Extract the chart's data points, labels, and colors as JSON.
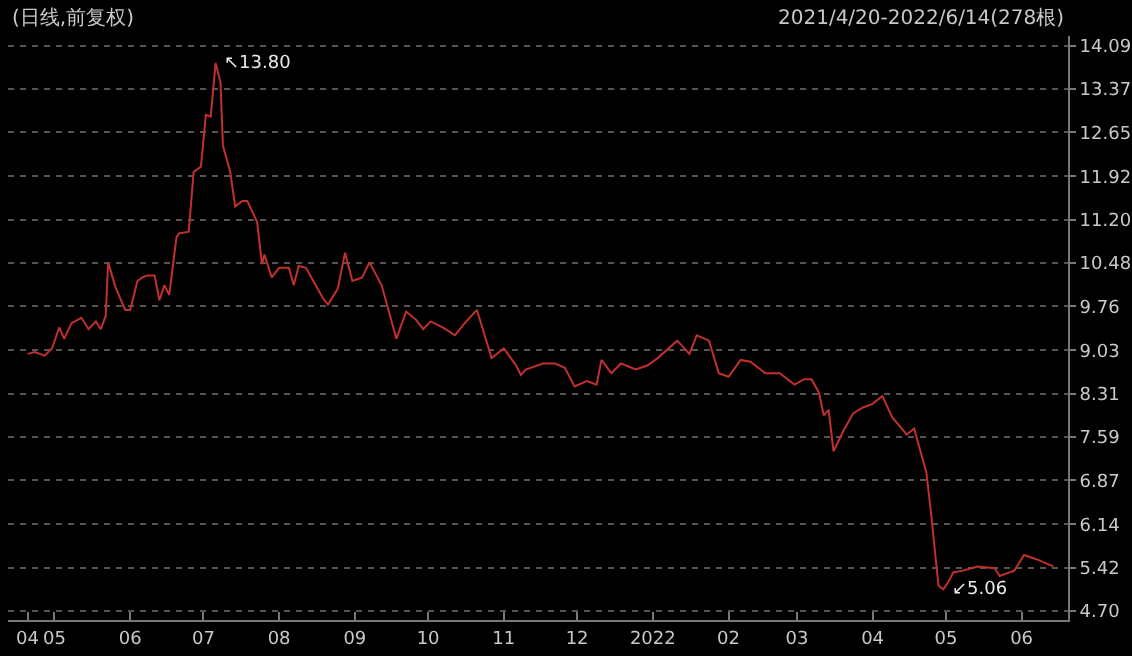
{
  "chart_data": {
    "type": "line",
    "title": "(日线,前复权)",
    "subtitle": "2021/4/20-2022/6/14(278根)",
    "x": [
      "2021-04-20",
      "2021-04-23",
      "2021-04-27",
      "2021-04-30",
      "2021-05-03",
      "2021-05-05",
      "2021-05-08",
      "2021-05-12",
      "2021-05-15",
      "2021-05-18",
      "2021-05-20",
      "2021-05-22",
      "2021-05-23",
      "2021-05-26",
      "2021-05-30",
      "2021-06-01",
      "2021-06-04",
      "2021-06-06",
      "2021-06-08",
      "2021-06-11",
      "2021-06-13",
      "2021-06-15",
      "2021-06-17",
      "2021-06-20",
      "2021-06-21",
      "2021-06-25",
      "2021-06-27",
      "2021-06-30",
      "2021-07-02",
      "2021-07-04",
      "2021-07-06",
      "2021-07-08",
      "2021-07-09",
      "2021-07-12",
      "2021-07-14",
      "2021-07-17",
      "2021-07-19",
      "2021-07-23",
      "2021-07-25",
      "2021-07-26",
      "2021-07-29",
      "2021-08-01",
      "2021-08-05",
      "2021-08-07",
      "2021-08-09",
      "2021-08-12",
      "2021-08-16",
      "2021-08-19",
      "2021-08-21",
      "2021-08-25",
      "2021-08-28",
      "2021-08-31",
      "2021-09-04",
      "2021-09-07",
      "2021-09-12",
      "2021-09-18",
      "2021-09-22",
      "2021-09-26",
      "2021-09-29",
      "2021-10-02",
      "2021-10-07",
      "2021-10-12",
      "2021-10-16",
      "2021-10-21",
      "2021-10-27",
      "2021-11-01",
      "2021-11-06",
      "2021-11-08",
      "2021-11-10",
      "2021-11-17",
      "2021-11-22",
      "2021-11-26",
      "2021-11-30",
      "2021-12-05",
      "2021-12-09",
      "2021-12-11",
      "2021-12-15",
      "2021-12-19",
      "2021-12-25",
      "2021-12-30",
      "2022-01-03",
      "2022-01-11",
      "2022-01-16",
      "2022-01-19",
      "2022-01-24",
      "2022-01-28",
      "2022-02-01",
      "2022-02-06",
      "2022-02-10",
      "2022-02-16",
      "2022-02-22",
      "2022-02-28",
      "2022-03-04",
      "2022-03-07",
      "2022-03-10",
      "2022-03-12",
      "2022-03-14",
      "2022-03-16",
      "2022-03-20",
      "2022-03-24",
      "2022-03-28",
      "2022-04-01",
      "2022-04-05",
      "2022-04-09",
      "2022-04-15",
      "2022-04-18",
      "2022-04-23",
      "2022-04-25",
      "2022-04-27",
      "2022-04-28",
      "2022-04-30",
      "2022-05-02",
      "2022-05-04",
      "2022-05-08",
      "2022-05-14",
      "2022-05-21",
      "2022-05-23",
      "2022-05-29",
      "2022-06-02",
      "2022-06-07",
      "2022-06-14"
    ],
    "series": [
      {
        "color": "#c0302f",
        "values": [
          8.97,
          9.0,
          8.94,
          9.06,
          9.41,
          9.22,
          9.48,
          9.57,
          9.38,
          9.51,
          9.38,
          9.6,
          10.49,
          10.08,
          9.7,
          9.7,
          10.18,
          10.24,
          10.27,
          10.27,
          9.86,
          10.11,
          9.95,
          10.91,
          10.97,
          11.0,
          11.99,
          12.08,
          12.94,
          12.91,
          13.8,
          13.48,
          12.43,
          11.99,
          11.42,
          11.51,
          11.51,
          11.16,
          10.46,
          10.62,
          10.24,
          10.4,
          10.4,
          10.11,
          10.43,
          10.4,
          10.11,
          9.89,
          9.79,
          10.05,
          10.65,
          10.18,
          10.24,
          10.49,
          10.11,
          9.22,
          9.67,
          9.54,
          9.38,
          9.51,
          9.41,
          9.28,
          9.48,
          9.7,
          8.9,
          9.06,
          8.78,
          8.62,
          8.71,
          8.81,
          8.81,
          8.74,
          8.43,
          8.52,
          8.46,
          8.87,
          8.65,
          8.81,
          8.71,
          8.78,
          8.9,
          9.19,
          8.97,
          9.28,
          9.19,
          8.65,
          8.59,
          8.87,
          8.84,
          8.65,
          8.65,
          8.46,
          8.55,
          8.55,
          8.33,
          7.95,
          8.04,
          7.35,
          7.69,
          7.98,
          8.08,
          8.14,
          8.27,
          7.92,
          7.63,
          7.73,
          7.0,
          6.3,
          5.5,
          5.12,
          5.06,
          5.18,
          5.34,
          5.37,
          5.44,
          5.41,
          5.28,
          5.37,
          5.63,
          5.56,
          5.44
        ]
      }
    ],
    "annotations": [
      {
        "text": "↖13.80",
        "x": "2021-07-06",
        "y": 13.8
      },
      {
        "text": "↙5.06",
        "x": "2022-04-30",
        "y": 5.06
      }
    ],
    "xlim": [
      "2021-04-12",
      "2022-06-20"
    ],
    "xticks": [
      {
        "value": "2021-04-20",
        "label": "04"
      },
      {
        "value": "2021-05-01",
        "label": "05"
      },
      {
        "value": "2021-06-01",
        "label": "06"
      },
      {
        "value": "2021-07-01",
        "label": "07"
      },
      {
        "value": "2021-08-01",
        "label": "08"
      },
      {
        "value": "2021-09-01",
        "label": "09"
      },
      {
        "value": "2021-10-01",
        "label": "10"
      },
      {
        "value": "2021-11-01",
        "label": "11"
      },
      {
        "value": "2021-12-01",
        "label": "12"
      },
      {
        "value": "2022-01-01",
        "label": "2022"
      },
      {
        "value": "2022-02-01",
        "label": "02"
      },
      {
        "value": "2022-03-01",
        "label": "03"
      },
      {
        "value": "2022-04-01",
        "label": "04"
      },
      {
        "value": "2022-05-01",
        "label": "05"
      },
      {
        "value": "2022-06-01",
        "label": "06"
      }
    ],
    "ylim": [
      4.55,
      14.25
    ],
    "yticks": [
      {
        "value": 4.7,
        "label": "4.70"
      },
      {
        "value": 5.42,
        "label": "5.42"
      },
      {
        "value": 6.14,
        "label": "6.14"
      },
      {
        "value": 6.87,
        "label": "6.87"
      },
      {
        "value": 7.59,
        "label": "7.59"
      },
      {
        "value": 8.31,
        "label": "8.31"
      },
      {
        "value": 9.03,
        "label": "9.03"
      },
      {
        "value": 9.76,
        "label": "9.76"
      },
      {
        "value": 10.48,
        "label": "10.48"
      },
      {
        "value": 11.2,
        "label": "11.20"
      },
      {
        "value": 11.92,
        "label": "11.92"
      },
      {
        "value": 12.65,
        "label": "12.65"
      },
      {
        "value": 13.37,
        "label": "13.37"
      },
      {
        "value": 14.09,
        "label": "14.09"
      }
    ],
    "grid": "y",
    "marker": "none",
    "line_style": "solid"
  }
}
